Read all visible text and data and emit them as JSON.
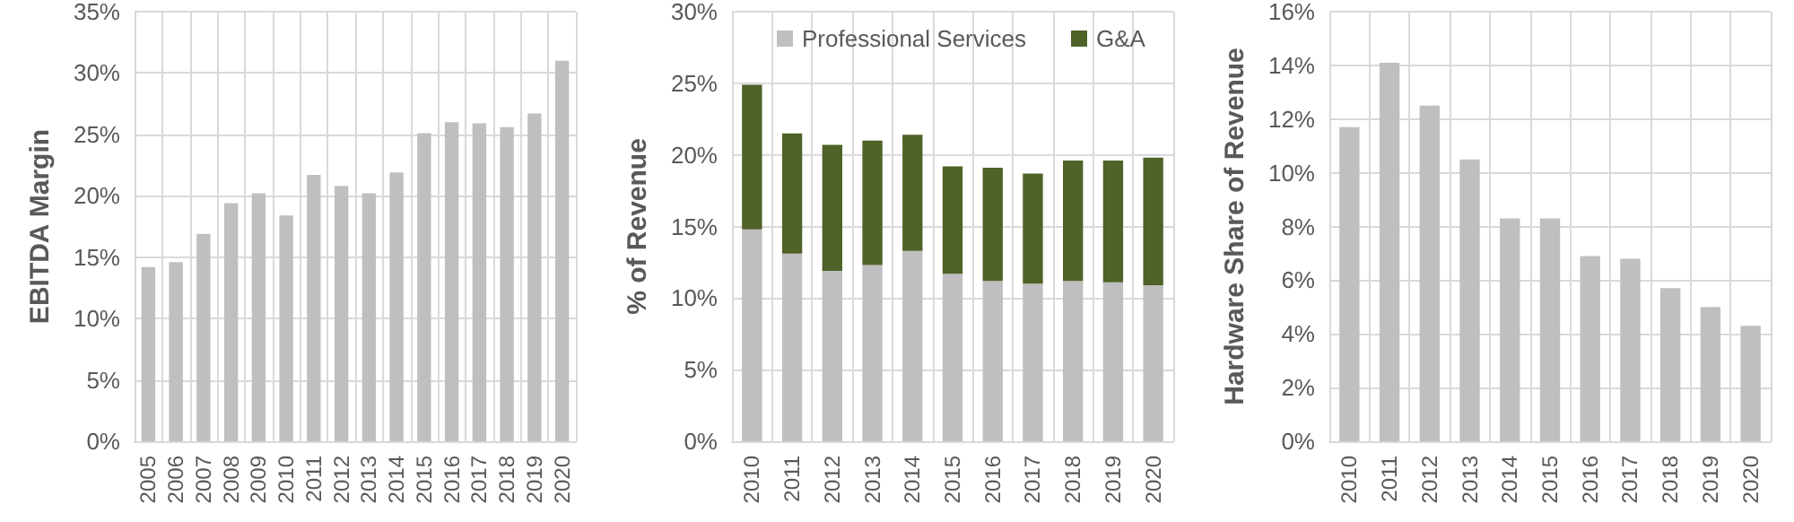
{
  "chart_data": [
    {
      "type": "bar",
      "ylabel": "EBITDA Margin",
      "categories": [
        "2005",
        "2006",
        "2007",
        "2008",
        "2009",
        "2010",
        "2011",
        "2012",
        "2013",
        "2014",
        "2015",
        "2016",
        "2017",
        "2018",
        "2019",
        "2020"
      ],
      "series": [
        {
          "color": "#bfbfbf",
          "values": [
            14.2,
            14.6,
            16.9,
            19.4,
            20.2,
            18.4,
            21.7,
            20.8,
            20.2,
            21.9,
            25.1,
            26.0,
            25.9,
            25.6,
            26.7,
            31.0
          ]
        }
      ],
      "ylim": [
        0,
        35
      ],
      "yticks": [
        {
          "value": 0,
          "label": "0%"
        },
        {
          "value": 5,
          "label": "5%"
        },
        {
          "value": 10,
          "label": "10%"
        },
        {
          "value": 15,
          "label": "15%"
        },
        {
          "value": 20,
          "label": "20%"
        },
        {
          "value": 25,
          "label": "25%"
        },
        {
          "value": 30,
          "label": "30%"
        },
        {
          "value": 35,
          "label": "35%"
        }
      ],
      "grid": true,
      "legend": false
    },
    {
      "type": "bar",
      "ylabel": "% of Revenue",
      "stacked": true,
      "categories": [
        "2010",
        "2011",
        "2012",
        "2013",
        "2014",
        "2015",
        "2016",
        "2017",
        "2018",
        "2019",
        "2020"
      ],
      "series": [
        {
          "name": "Professional Services",
          "color": "#bfbfbf",
          "values": [
            14.8,
            13.1,
            11.9,
            12.3,
            13.3,
            11.7,
            11.2,
            11.0,
            11.2,
            11.1,
            10.9
          ]
        },
        {
          "name": "G&A",
          "color": "#4f6228",
          "values": [
            10.1,
            8.4,
            8.8,
            8.7,
            8.1,
            7.5,
            7.9,
            7.7,
            8.4,
            8.5,
            8.9
          ]
        }
      ],
      "ylim": [
        0,
        30
      ],
      "yticks": [
        {
          "value": 0,
          "label": "0%"
        },
        {
          "value": 5,
          "label": "5%"
        },
        {
          "value": 10,
          "label": "10%"
        },
        {
          "value": 15,
          "label": "15%"
        },
        {
          "value": 20,
          "label": "20%"
        },
        {
          "value": 25,
          "label": "25%"
        },
        {
          "value": 30,
          "label": "30%"
        }
      ],
      "grid": true,
      "legend": "top"
    },
    {
      "type": "bar",
      "ylabel": "Hardware Share of Revenue",
      "categories": [
        "2010",
        "2011",
        "2012",
        "2013",
        "2014",
        "2015",
        "2016",
        "2017",
        "2018",
        "2019",
        "2020"
      ],
      "series": [
        {
          "color": "#bfbfbf",
          "values": [
            11.7,
            14.1,
            12.5,
            10.5,
            8.3,
            8.3,
            6.9,
            6.8,
            5.7,
            5.0,
            4.3
          ]
        }
      ],
      "ylim": [
        0,
        16
      ],
      "yticks": [
        {
          "value": 0,
          "label": "0%"
        },
        {
          "value": 2,
          "label": "2%"
        },
        {
          "value": 4,
          "label": "4%"
        },
        {
          "value": 6,
          "label": "6%"
        },
        {
          "value": 8,
          "label": "8%"
        },
        {
          "value": 10,
          "label": "10%"
        },
        {
          "value": 12,
          "label": "12%"
        },
        {
          "value": 14,
          "label": "14%"
        },
        {
          "value": 16,
          "label": "16%"
        }
      ],
      "grid": true,
      "legend": false
    }
  ]
}
